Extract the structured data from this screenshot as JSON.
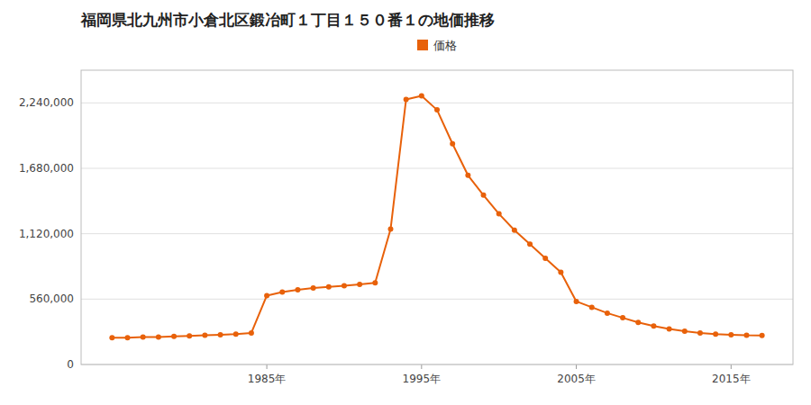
{
  "chart_data": {
    "type": "line",
    "title": "福岡県北九州市小倉北区鍛冶町１丁目１５０番１の地価推移",
    "x": [
      1975,
      1976,
      1977,
      1978,
      1979,
      1980,
      1981,
      1982,
      1983,
      1984,
      1985,
      1986,
      1987,
      1988,
      1989,
      1990,
      1991,
      1992,
      1993,
      1994,
      1995,
      1996,
      1997,
      1998,
      1999,
      2000,
      2001,
      2002,
      2003,
      2004,
      2005,
      2006,
      2007,
      2008,
      2009,
      2010,
      2011,
      2012,
      2013,
      2014,
      2015,
      2016,
      2017
    ],
    "series": [
      {
        "name": "価格",
        "color": "#e8610a",
        "marker": "circle",
        "values": [
          230000,
          230000,
          235000,
          235000,
          240000,
          245000,
          250000,
          255000,
          260000,
          270000,
          590000,
          620000,
          640000,
          655000,
          665000,
          675000,
          685000,
          700000,
          1160000,
          2270000,
          2300000,
          2180000,
          1890000,
          1620000,
          1450000,
          1290000,
          1150000,
          1030000,
          910000,
          790000,
          540000,
          490000,
          440000,
          400000,
          360000,
          330000,
          305000,
          285000,
          270000,
          260000,
          255000,
          250000,
          248000
        ]
      }
    ],
    "ylim": [
      0,
      2520000
    ],
    "yticks": [
      0,
      {
        "value": 560000,
        "label": "560,000"
      },
      {
        "value": 1120000,
        "label": "1,120,000"
      },
      {
        "value": 1680000,
        "label": "1,680,000"
      },
      {
        "value": 2240000,
        "label": "2,240,000"
      }
    ],
    "xlim": [
      1973,
      2019
    ],
    "xticks": [
      {
        "value": 1985,
        "label": "1985年"
      },
      {
        "value": 1995,
        "label": "1995年"
      },
      {
        "value": 2005,
        "label": "2005年"
      },
      {
        "value": 2015,
        "label": "2015年"
      }
    ],
    "grid": true,
    "legend": "top"
  }
}
